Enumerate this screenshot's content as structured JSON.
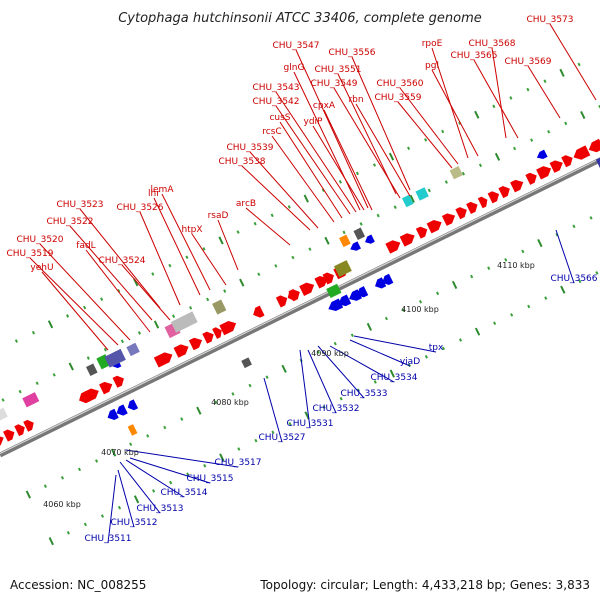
{
  "title": "Cytophaga hutchinsonii ATCC 33406, complete genome",
  "accession": "Accession: NC_008255",
  "summary": "Topology: circular; Length: 4,433,218 bp; Genes: 3,833",
  "colors": {
    "forward_gene": "#ff0000",
    "reverse_gene": "#0000e0",
    "forward_label": "#cc0000",
    "reverse_label": "#0000aa",
    "axis": "#888888",
    "tick": "#2e8b2e"
  },
  "kbp_marks": [
    "4060 kbp",
    "4070 kbp",
    "4080 kbp",
    "4090 kbp",
    "4100 kbp",
    "4110 kbp"
  ],
  "forward_labels": [
    "CHU_3511",
    "CHU_3512",
    "CHU_3513",
    "CHU_3514",
    "CHU_3515",
    "CHU_3517",
    "CHU_3527",
    "CHU_3531",
    "CHU_3532",
    "CHU_3533",
    "CHU_3534",
    "yiaD",
    "tpx",
    "CHU_3566"
  ],
  "reverse_labels": [
    "CHU_3519",
    "yehU",
    "CHU_3520",
    "fadL",
    "CHU_3522",
    "CHU_3523",
    "CHU_3524",
    "CHU_3526",
    "lhr",
    "lemA",
    "htpX",
    "rsaD",
    "arcB",
    "CHU_3538",
    "CHU_3539",
    "rcsC",
    "cusS",
    "CHU_3542",
    "CHU_3543",
    "glnG",
    "cpxA",
    "ydiP",
    "CHU_3547",
    "CHU_3549",
    "CHU_3551",
    "CHU_3556",
    "rbn",
    "CHU_3559",
    "CHU_3560",
    "pgl",
    "rpoE",
    "CHU_3565",
    "CHU_3568",
    "CHU_3569",
    "CHU_3573"
  ]
}
